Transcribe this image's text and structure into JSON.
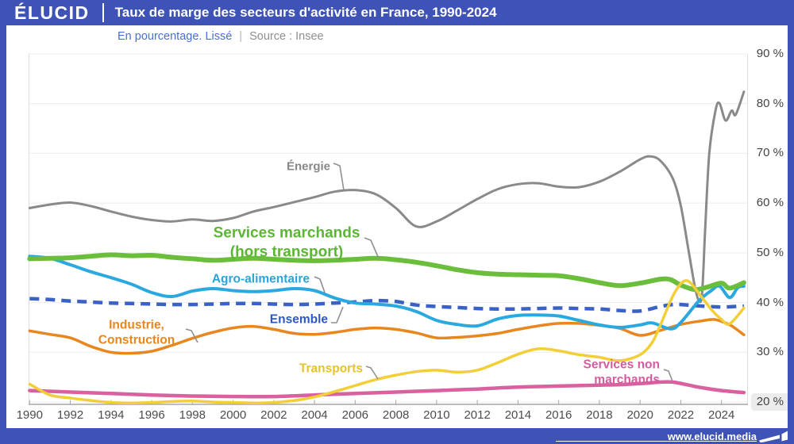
{
  "header": {
    "logo": "ÉLUCID",
    "title": "Taux de marge des secteurs d'activité en France, 1990-2024"
  },
  "subtitle": {
    "unit_label": "En pourcentage. Lissé",
    "separator": "|",
    "source_label": "Source : Insee"
  },
  "footer": {
    "website": "www.elucid.media"
  },
  "colors": {
    "brand_blue": "#3f53b6",
    "subtitle_blue": "#4a6fd6",
    "grid": "#ececec",
    "axis": "#a6a6a6",
    "plot_border": "#dedede",
    "leader": "#8f8f8f",
    "highlight_bg": "#ececec"
  },
  "chart_data": {
    "type": "line",
    "title": "Taux de marge des secteurs d'activité en France, 1990-2024",
    "unit": "En pourcentage. Lissé",
    "source": "Source : Insee",
    "grid": true,
    "x_range": [
      1989.95,
      2025.3
    ],
    "x_ticks": [
      1990,
      1992,
      1994,
      1996,
      1998,
      2000,
      2002,
      2004,
      2006,
      2008,
      2010,
      2012,
      2014,
      2016,
      2018,
      2020,
      2022,
      2024
    ],
    "y_ticks": [
      20,
      30,
      40,
      50,
      60,
      70,
      80,
      90
    ],
    "y_tick_suffix": " %",
    "highlighted_y_tick": 20,
    "series": [
      {
        "id": "energie",
        "label": "Énergie",
        "color": "#8a8a8a",
        "label_color": "#878787",
        "width": 3,
        "dash": null,
        "points": [
          [
            1990,
            59
          ],
          [
            1991,
            59.7
          ],
          [
            1992,
            60.1
          ],
          [
            1993,
            59.4
          ],
          [
            1994,
            58.3
          ],
          [
            1995,
            57.3
          ],
          [
            1996,
            56.6
          ],
          [
            1997,
            56.3
          ],
          [
            1998,
            56.7
          ],
          [
            1999,
            56.4
          ],
          [
            2000,
            57
          ],
          [
            2001,
            58.3
          ],
          [
            2002,
            59.2
          ],
          [
            2003,
            60.2
          ],
          [
            2004,
            61.2
          ],
          [
            2005,
            62.3
          ],
          [
            2006,
            62.6
          ],
          [
            2007,
            61.8
          ],
          [
            2008,
            59
          ],
          [
            2009,
            55.3
          ],
          [
            2010,
            56.3
          ],
          [
            2011,
            58.5
          ],
          [
            2012,
            60.8
          ],
          [
            2013,
            62.8
          ],
          [
            2014,
            63.8
          ],
          [
            2015,
            64
          ],
          [
            2016,
            63.3
          ],
          [
            2017,
            63.2
          ],
          [
            2018,
            64.3
          ],
          [
            2019,
            66.3
          ],
          [
            2020,
            68.8
          ],
          [
            2020.5,
            69.4
          ],
          [
            2021,
            68.5
          ],
          [
            2021.6,
            65
          ],
          [
            2022,
            59.5
          ],
          [
            2022.4,
            50
          ],
          [
            2022.7,
            43
          ],
          [
            2022.9,
            40.3
          ],
          [
            2023.05,
            42
          ],
          [
            2023.2,
            55
          ],
          [
            2023.4,
            70
          ],
          [
            2023.7,
            78.5
          ],
          [
            2023.9,
            80.1
          ],
          [
            2024.2,
            76.6
          ],
          [
            2024.5,
            78.6
          ],
          [
            2024.7,
            77.8
          ],
          [
            2025.1,
            82.4
          ]
        ]
      },
      {
        "id": "services-non-marchands",
        "label": "Services non marchands",
        "color": "#d9619f",
        "label_color": "#d65b9e",
        "width": 4.5,
        "dash": null,
        "points": [
          [
            1990,
            22.3
          ],
          [
            1992,
            22
          ],
          [
            1994,
            21.7
          ],
          [
            1996,
            21.4
          ],
          [
            1998,
            21.2
          ],
          [
            2000,
            21.1
          ],
          [
            2002,
            21.1
          ],
          [
            2004,
            21.4
          ],
          [
            2006,
            21.7
          ],
          [
            2008,
            22
          ],
          [
            2010,
            22.3
          ],
          [
            2012,
            22.6
          ],
          [
            2014,
            23
          ],
          [
            2016,
            23.2
          ],
          [
            2018,
            23.4
          ],
          [
            2019,
            23.5
          ],
          [
            2020,
            23.7
          ],
          [
            2021,
            24
          ],
          [
            2021.6,
            24
          ],
          [
            2022.5,
            23.3
          ],
          [
            2023,
            22.9
          ],
          [
            2024,
            22.3
          ],
          [
            2025.1,
            21.9
          ]
        ]
      },
      {
        "id": "industrie-construction",
        "label": "Industrie,\nConstruction",
        "color": "#e8861f",
        "label_color": "#e8861f",
        "width": 3.5,
        "dash": null,
        "points": [
          [
            1990,
            34.3
          ],
          [
            1991,
            33.6
          ],
          [
            1992,
            32.9
          ],
          [
            1993,
            31.2
          ],
          [
            1994,
            30
          ],
          [
            1995,
            29.8
          ],
          [
            1996,
            30.2
          ],
          [
            1997,
            31.4
          ],
          [
            1998,
            32.8
          ],
          [
            1999,
            34
          ],
          [
            2000,
            34.9
          ],
          [
            2001,
            35.2
          ],
          [
            2002,
            34.6
          ],
          [
            2003,
            33.8
          ],
          [
            2004,
            33.6
          ],
          [
            2005,
            34
          ],
          [
            2006,
            34.6
          ],
          [
            2007,
            34.9
          ],
          [
            2008,
            34.6
          ],
          [
            2009,
            33.9
          ],
          [
            2010,
            32.9
          ],
          [
            2011,
            33
          ],
          [
            2012,
            33.3
          ],
          [
            2013,
            33.8
          ],
          [
            2014,
            34.6
          ],
          [
            2015,
            35.3
          ],
          [
            2016,
            35.8
          ],
          [
            2017,
            35.8
          ],
          [
            2018,
            35.4
          ],
          [
            2019,
            34.8
          ],
          [
            2020,
            33.4
          ],
          [
            2021,
            34.4
          ],
          [
            2022,
            35.6
          ],
          [
            2023,
            36.3
          ],
          [
            2023.6,
            36.6
          ],
          [
            2024,
            36.2
          ],
          [
            2024.5,
            35.3
          ],
          [
            2025.1,
            33.5
          ]
        ]
      },
      {
        "id": "ensemble",
        "label": "Ensemble",
        "color": "#3a62c6",
        "label_color": "#2e59be",
        "width": 4.5,
        "dash": [
          12,
          8
        ],
        "points": [
          [
            1990,
            40.8
          ],
          [
            1991,
            40.6
          ],
          [
            1992,
            40.3
          ],
          [
            1993,
            40.1
          ],
          [
            1994,
            39.9
          ],
          [
            1995,
            39.8
          ],
          [
            1996,
            39.7
          ],
          [
            1997,
            39.6
          ],
          [
            1998,
            39.6
          ],
          [
            1999,
            39.7
          ],
          [
            2000,
            39.8
          ],
          [
            2001,
            39.8
          ],
          [
            2002,
            39.7
          ],
          [
            2003,
            39.6
          ],
          [
            2004,
            39.7
          ],
          [
            2005,
            39.9
          ],
          [
            2006,
            40.1
          ],
          [
            2007,
            40.4
          ],
          [
            2008,
            40.2
          ],
          [
            2009,
            39.5
          ],
          [
            2010,
            39.2
          ],
          [
            2011,
            39
          ],
          [
            2012,
            38.8
          ],
          [
            2013,
            38.7
          ],
          [
            2014,
            38.7
          ],
          [
            2015,
            38.8
          ],
          [
            2016,
            38.9
          ],
          [
            2017,
            38.8
          ],
          [
            2018,
            38.7
          ],
          [
            2019,
            38.4
          ],
          [
            2020,
            38.3
          ],
          [
            2021,
            39.2
          ],
          [
            2021.6,
            39.6
          ],
          [
            2022,
            39.6
          ],
          [
            2023,
            39.3
          ],
          [
            2024,
            39.1
          ],
          [
            2025.1,
            39.3
          ]
        ]
      },
      {
        "id": "agro-alimentaire",
        "label": "Agro-alimentaire",
        "color": "#2ba8e0",
        "label_color": "#29a4dd",
        "width": 4,
        "dash": null,
        "points": [
          [
            1990,
            49.3
          ],
          [
            1991,
            48.9
          ],
          [
            1992,
            47.6
          ],
          [
            1993,
            46.2
          ],
          [
            1994,
            45
          ],
          [
            1995,
            43.7
          ],
          [
            1996,
            42
          ],
          [
            1997,
            41.2
          ],
          [
            1998,
            42.3
          ],
          [
            1999,
            42.8
          ],
          [
            2000,
            42.4
          ],
          [
            2001,
            42.2
          ],
          [
            2002,
            42.4
          ],
          [
            2003,
            42.8
          ],
          [
            2004,
            42.4
          ],
          [
            2005,
            40.9
          ],
          [
            2006,
            39.9
          ],
          [
            2007,
            39.7
          ],
          [
            2008,
            39.3
          ],
          [
            2009,
            38.2
          ],
          [
            2010,
            36.4
          ],
          [
            2011,
            35.6
          ],
          [
            2012,
            35.3
          ],
          [
            2013,
            36.7
          ],
          [
            2014,
            37.4
          ],
          [
            2015,
            37.5
          ],
          [
            2016,
            37.3
          ],
          [
            2017,
            36.4
          ],
          [
            2018,
            35.5
          ],
          [
            2019,
            35
          ],
          [
            2020,
            35.5
          ],
          [
            2020.6,
            35.9
          ],
          [
            2021.5,
            34.7
          ],
          [
            2022,
            36
          ],
          [
            2022.9,
            40.4
          ],
          [
            2023.5,
            42.4
          ],
          [
            2023.9,
            43.3
          ],
          [
            2024.4,
            41
          ],
          [
            2024.8,
            43
          ],
          [
            2025.1,
            43.3
          ]
        ]
      },
      {
        "id": "services-marchands",
        "label": "Services marchands\n(hors transport)",
        "color": "#6abe3c",
        "label_color": "#5bb634",
        "width": 6,
        "dash": null,
        "points": [
          [
            1990,
            48.8
          ],
          [
            1991,
            48.9
          ],
          [
            1992,
            49
          ],
          [
            1993,
            49.3
          ],
          [
            1994,
            49.6
          ],
          [
            1995,
            49.4
          ],
          [
            1996,
            49.5
          ],
          [
            1997,
            49.1
          ],
          [
            1998,
            48.8
          ],
          [
            1999,
            48.5
          ],
          [
            2000,
            48.7
          ],
          [
            2001,
            48.9
          ],
          [
            2002,
            48.7
          ],
          [
            2003,
            48.5
          ],
          [
            2004,
            48.4
          ],
          [
            2005,
            48.5
          ],
          [
            2006,
            48.7
          ],
          [
            2007,
            48.9
          ],
          [
            2008,
            48.6
          ],
          [
            2009,
            48.1
          ],
          [
            2010,
            47.4
          ],
          [
            2011,
            46.6
          ],
          [
            2012,
            46
          ],
          [
            2013,
            45.7
          ],
          [
            2014,
            45.6
          ],
          [
            2015,
            45.5
          ],
          [
            2016,
            45.4
          ],
          [
            2017,
            44.8
          ],
          [
            2018,
            44
          ],
          [
            2019,
            43.4
          ],
          [
            2020,
            43.9
          ],
          [
            2021,
            44.7
          ],
          [
            2021.5,
            44.6
          ],
          [
            2022,
            43.5
          ],
          [
            2022.7,
            42.6
          ],
          [
            2023.3,
            43.1
          ],
          [
            2024,
            43.9
          ],
          [
            2024.4,
            42.9
          ],
          [
            2025.1,
            44
          ]
        ]
      },
      {
        "id": "transports",
        "label": "Transports",
        "color": "#f2cf39",
        "label_color": "#e5c32c",
        "width": 3.5,
        "dash": null,
        "points": [
          [
            1990,
            23.6
          ],
          [
            1991,
            21.4
          ],
          [
            1992,
            20.8
          ],
          [
            1993,
            20.3
          ],
          [
            1994,
            19.9
          ],
          [
            1995,
            19.8
          ],
          [
            1996,
            19.9
          ],
          [
            1997,
            20.1
          ],
          [
            1998,
            20.2
          ],
          [
            1999,
            20
          ],
          [
            2000,
            19.9
          ],
          [
            2001,
            19.8
          ],
          [
            2002,
            19.9
          ],
          [
            2003,
            20.3
          ],
          [
            2004,
            21
          ],
          [
            2005,
            22.1
          ],
          [
            2006,
            23.3
          ],
          [
            2007,
            24.5
          ],
          [
            2008,
            25.4
          ],
          [
            2009,
            26.1
          ],
          [
            2010,
            26.4
          ],
          [
            2011,
            26
          ],
          [
            2012,
            26.4
          ],
          [
            2013,
            27.9
          ],
          [
            2014,
            29.6
          ],
          [
            2015,
            30.7
          ],
          [
            2016,
            30.3
          ],
          [
            2017,
            29.5
          ],
          [
            2018,
            29
          ],
          [
            2019,
            28.3
          ],
          [
            2020,
            29.5
          ],
          [
            2020.6,
            32
          ],
          [
            2021,
            35.5
          ],
          [
            2021.7,
            42
          ],
          [
            2022.3,
            44.4
          ],
          [
            2023,
            41.2
          ],
          [
            2023.5,
            38.6
          ],
          [
            2024,
            36.6
          ],
          [
            2024.4,
            35.7
          ],
          [
            2025.1,
            38.9
          ]
        ]
      }
    ]
  }
}
